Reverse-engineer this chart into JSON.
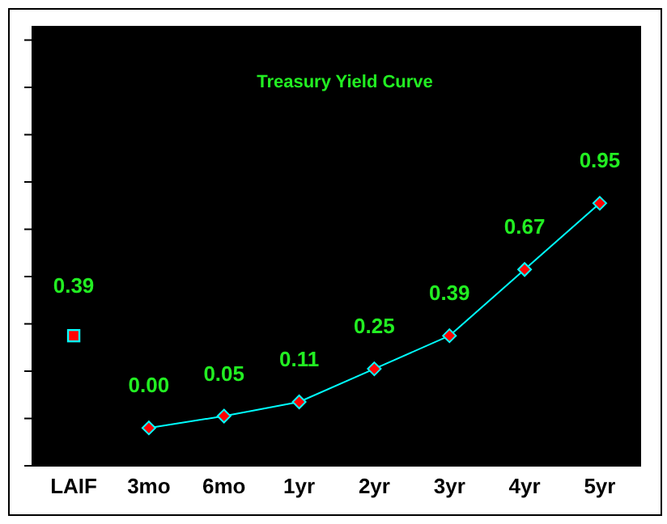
{
  "chart_data": {
    "type": "line",
    "title": "Treasury Yield Curve",
    "categories": [
      "LAIF",
      "3mo",
      "6mo",
      "1yr",
      "2yr",
      "3yr",
      "4yr",
      "5yr"
    ],
    "series": [
      {
        "type": "scatter",
        "marker": "square",
        "color": "#00ffff",
        "colors": [
          "#ff0000",
          null,
          null,
          null,
          null,
          null,
          null,
          null
        ],
        "values": [
          0.39,
          null,
          null,
          null,
          null,
          null,
          null,
          null
        ],
        "value_labels": [
          "0.39",
          null,
          null,
          null,
          null,
          null,
          null,
          null
        ]
      },
      {
        "marker": "diamond",
        "color": "#00ffff",
        "colors": [
          null,
          "#ff0000",
          "#ff0000",
          "#ff0000",
          "#ff0000",
          "#ff0000",
          "#ff0000",
          "#ff0000"
        ],
        "values": [
          null,
          0.0,
          0.05,
          0.11,
          0.25,
          0.39,
          0.67,
          0.95
        ],
        "value_labels": [
          null,
          "0.00",
          "0.05",
          "0.11",
          "0.25",
          "0.39",
          "0.67",
          "0.95"
        ]
      }
    ],
    "ylim": [
      -0.16,
      1.7
    ],
    "yticks": [
      {
        "value": -0.16,
        "label": null
      },
      {
        "value": 0.04,
        "label": null
      },
      {
        "value": 0.24,
        "label": null
      },
      {
        "value": 0.44,
        "label": null
      },
      {
        "value": 0.64,
        "label": null
      },
      {
        "value": 0.84,
        "label": null
      },
      {
        "value": 1.04,
        "label": null
      },
      {
        "value": 1.24,
        "label": null
      },
      {
        "value": 1.44,
        "label": null
      },
      {
        "value": 1.64,
        "label": null
      }
    ],
    "tick_labels": "x",
    "legend": false,
    "grid": false
  }
}
